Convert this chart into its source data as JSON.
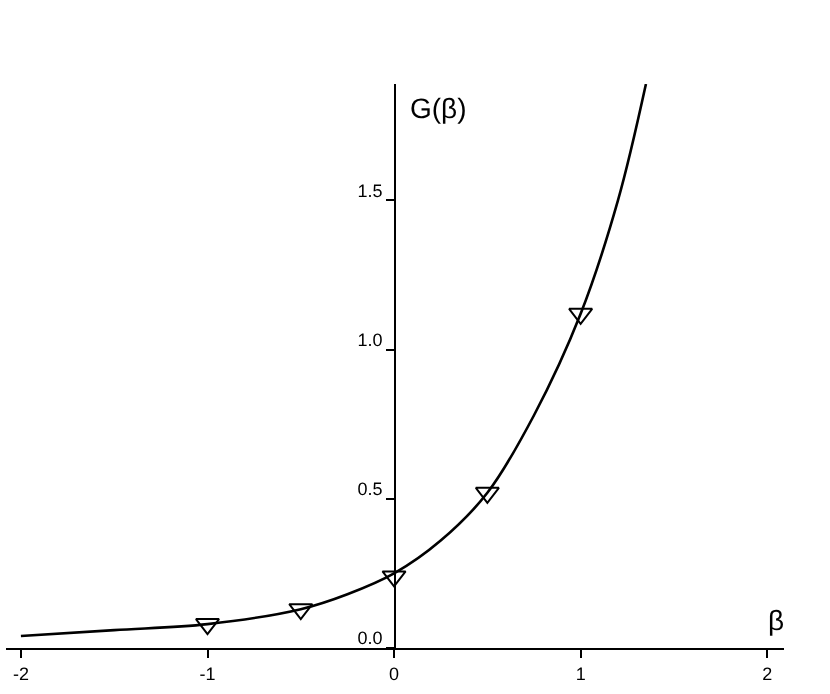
{
  "chart_data": {
    "type": "line",
    "xlabel": "β",
    "ylabel": "G(β)",
    "xlim": [
      -2.08,
      2.09
    ],
    "ylim": [
      0,
      1.89
    ],
    "xticks": [
      -2,
      -1,
      0,
      1,
      2
    ],
    "yticks": [
      {
        "value": 0,
        "label": "0.0"
      },
      {
        "value": 0.5,
        "label": "0.5"
      },
      {
        "value": 1,
        "label": "1.0"
      },
      {
        "value": 1.5,
        "label": "1.5"
      }
    ],
    "series": [
      {
        "color": "#000000",
        "marker": "none",
        "line_style": "solid",
        "x": [
          -2,
          -1.5,
          -1,
          -0.5,
          -0.25,
          0,
          0.25,
          0.5,
          0.75,
          1,
          1.2,
          1.35
        ],
        "values": [
          0.04,
          0.06,
          0.08,
          0.13,
          0.18,
          0.25,
          0.36,
          0.52,
          0.78,
          1.12,
          1.5,
          1.89
        ]
      },
      {
        "type": "scatter",
        "color": "#000000",
        "marker": "triangle",
        "x": [
          -1,
          -0.5,
          0,
          0.5,
          1
        ],
        "values": [
          0.08,
          0.13,
          0.24,
          0.52,
          1.12
        ]
      }
    ]
  }
}
